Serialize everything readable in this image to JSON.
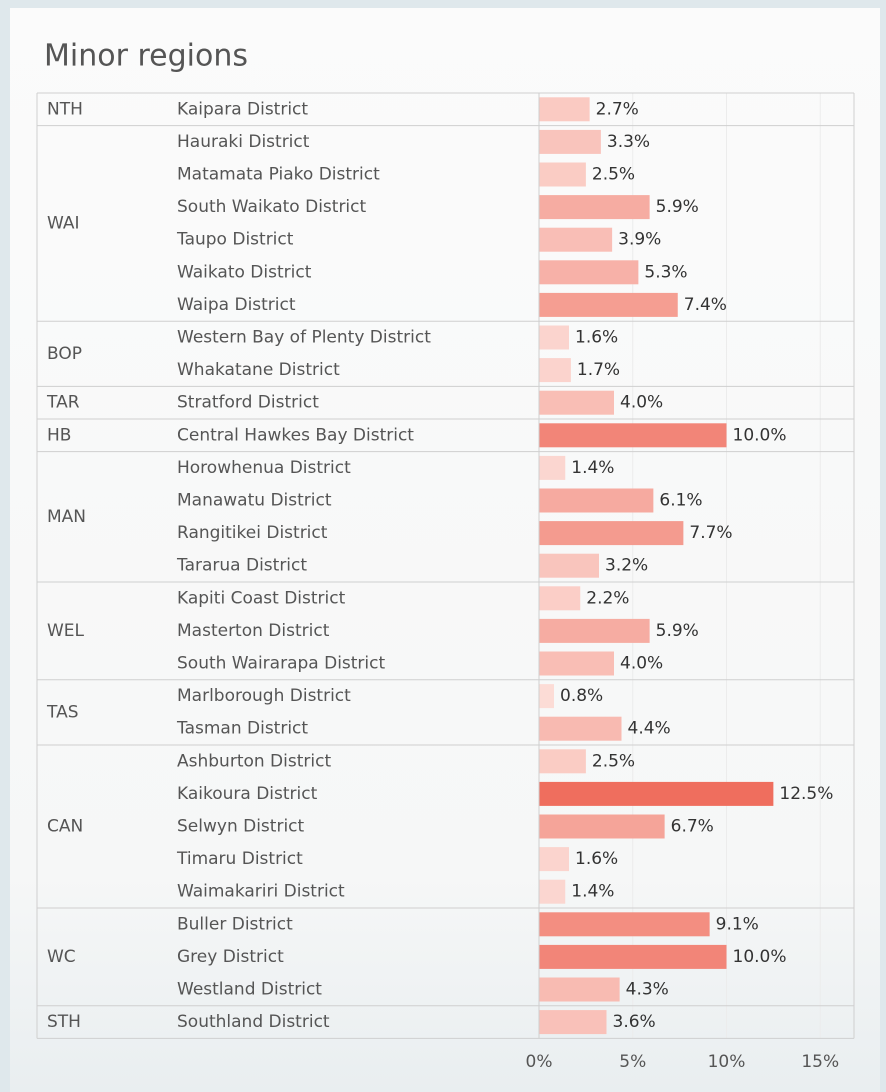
{
  "chart_data": {
    "type": "bar",
    "title": "Minor regions",
    "xlim": [
      0,
      16.8
    ],
    "xticks": [
      {
        "value": 0,
        "label": "0%"
      },
      {
        "value": 5,
        "label": "5%"
      },
      {
        "value": 10,
        "label": "10%"
      },
      {
        "value": 15,
        "label": "15%"
      }
    ],
    "grid": true,
    "color_range": [
      "#fde3de",
      "#ef6e5e"
    ],
    "groups": [
      {
        "name": "NTH",
        "categories": [
          "Kaipara District"
        ],
        "values": [
          2.7
        ],
        "value_labels": [
          "2.7%"
        ]
      },
      {
        "name": "WAI",
        "categories": [
          "Hauraki District",
          "Matamata Piako District",
          "South Waikato District",
          "Taupo District",
          "Waikato District",
          "Waipa District"
        ],
        "values": [
          3.3,
          2.5,
          5.9,
          3.9,
          5.3,
          7.4
        ],
        "value_labels": [
          "3.3%",
          "2.5%",
          "5.9%",
          "3.9%",
          "5.3%",
          "7.4%"
        ]
      },
      {
        "name": "BOP",
        "categories": [
          "Western Bay of Plenty District",
          "Whakatane District"
        ],
        "values": [
          1.6,
          1.7
        ],
        "value_labels": [
          "1.6%",
          "1.7%"
        ]
      },
      {
        "name": "TAR",
        "categories": [
          "Stratford District"
        ],
        "values": [
          4.0
        ],
        "value_labels": [
          "4.0%"
        ]
      },
      {
        "name": "HB",
        "categories": [
          "Central Hawkes Bay District"
        ],
        "values": [
          10.0
        ],
        "value_labels": [
          "10.0%"
        ]
      },
      {
        "name": "MAN",
        "categories": [
          "Horowhenua District",
          "Manawatu District",
          "Rangitikei District",
          "Tararua District"
        ],
        "values": [
          1.4,
          6.1,
          7.7,
          3.2
        ],
        "value_labels": [
          "1.4%",
          "6.1%",
          "7.7%",
          "3.2%"
        ]
      },
      {
        "name": "WEL",
        "categories": [
          "Kapiti Coast District",
          "Masterton District",
          "South Wairarapa District"
        ],
        "values": [
          2.2,
          5.9,
          4.0
        ],
        "value_labels": [
          "2.2%",
          "5.9%",
          "4.0%"
        ]
      },
      {
        "name": "TAS",
        "categories": [
          "Marlborough District",
          "Tasman District"
        ],
        "values": [
          0.8,
          4.4
        ],
        "value_labels": [
          "0.8%",
          "4.4%"
        ]
      },
      {
        "name": "CAN",
        "categories": [
          "Ashburton District",
          "Kaikoura District",
          "Selwyn District",
          "Timaru District",
          "Waimakariri District"
        ],
        "values": [
          2.5,
          12.5,
          6.7,
          1.6,
          1.4
        ],
        "value_labels": [
          "2.5%",
          "12.5%",
          "6.7%",
          "1.6%",
          "1.4%"
        ]
      },
      {
        "name": "WC",
        "categories": [
          "Buller District",
          "Grey District",
          "Westland District"
        ],
        "values": [
          9.1,
          10.0,
          4.3
        ],
        "value_labels": [
          "9.1%",
          "10.0%",
          "4.3%"
        ]
      },
      {
        "name": "STH",
        "categories": [
          "Southland District"
        ],
        "values": [
          3.6
        ],
        "value_labels": [
          "3.6%"
        ]
      }
    ]
  }
}
